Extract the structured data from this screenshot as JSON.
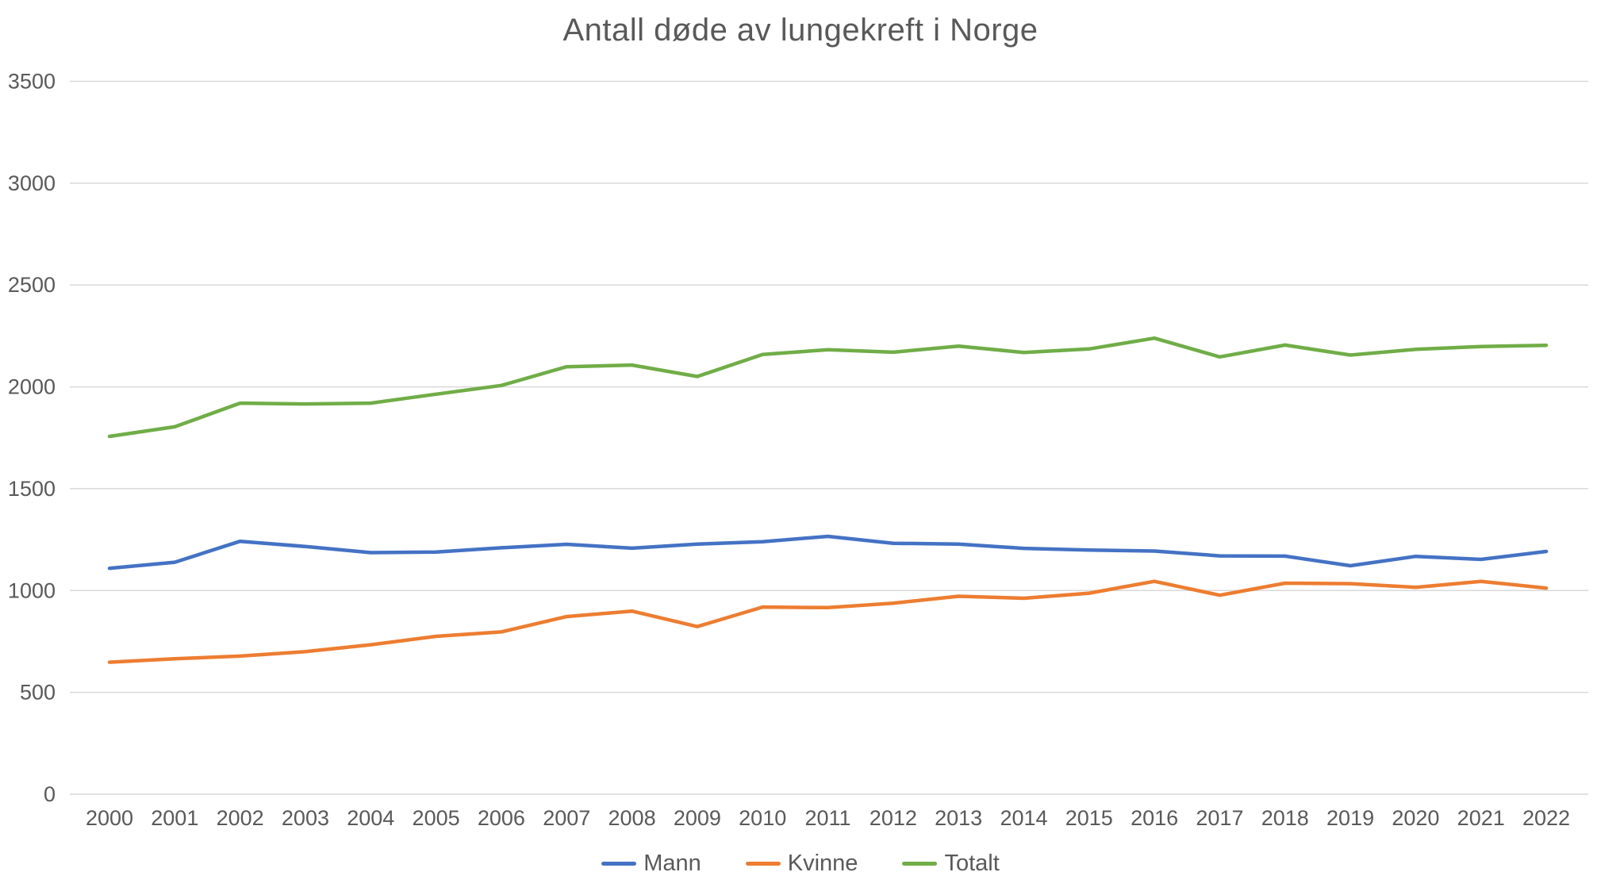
{
  "title": "Antall døde av lungekreft i Norge",
  "chart_data": {
    "type": "line",
    "title": "Antall døde av lungekreft i Norge",
    "xlabel": "",
    "ylabel": "",
    "x": [
      2000,
      2001,
      2002,
      2003,
      2004,
      2005,
      2006,
      2007,
      2008,
      2009,
      2010,
      2011,
      2012,
      2013,
      2014,
      2015,
      2016,
      2017,
      2018,
      2019,
      2020,
      2021,
      2022
    ],
    "series": [
      {
        "name": "Mann",
        "color": "#4472C4",
        "values": [
          1109,
          1139,
          1242,
          1216,
          1186,
          1189,
          1210,
          1227,
          1208,
          1228,
          1240,
          1266,
          1232,
          1228,
          1207,
          1199,
          1194,
          1170,
          1169,
          1122,
          1168,
          1153,
          1192
        ]
      },
      {
        "name": "Kvinne",
        "color": "#ED7D31",
        "values": [
          648,
          665,
          678,
          700,
          734,
          775,
          797,
          872,
          899,
          823,
          919,
          916,
          938,
          972,
          962,
          987,
          1045,
          977,
          1036,
          1034,
          1016,
          1045,
          1012
        ]
      },
      {
        "name": "Totalt",
        "color": "#70AD47",
        "values": [
          1757,
          1804,
          1920,
          1916,
          1920,
          1964,
          2007,
          2099,
          2107,
          2051,
          2159,
          2182,
          2170,
          2200,
          2169,
          2186,
          2239,
          2147,
          2205,
          2156,
          2184,
          2198,
          2204
        ]
      }
    ],
    "ylim": [
      0,
      3500
    ],
    "ytick_step": 500,
    "yticks": [
      0,
      500,
      1000,
      1500,
      2000,
      2500,
      3000,
      3500
    ],
    "grid": "horizontal",
    "gridline_color": "#D9D9D9",
    "axis_line_color": "#D9D9D9",
    "tick_label_color": "#595959",
    "legend_position": "bottom",
    "line_width": 4.5
  }
}
